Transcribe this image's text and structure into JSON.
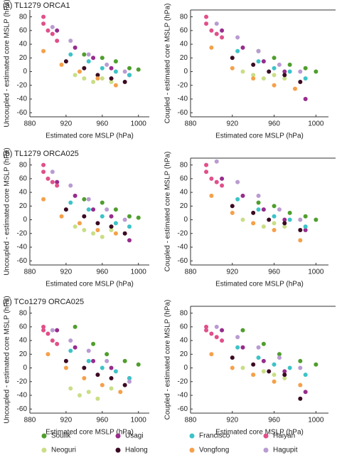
{
  "legend": [
    {
      "name": "Soulik",
      "color": "#4f9e2d"
    },
    {
      "name": "Usagi",
      "color": "#972c8c"
    },
    {
      "name": "Francisco",
      "color": "#3cc3c8"
    },
    {
      "name": "Haiyan",
      "color": "#e0508a"
    },
    {
      "name": "Neoguri",
      "color": "#c9de86"
    },
    {
      "name": "Halong",
      "color": "#3b0a22"
    },
    {
      "name": "Vongfong",
      "color": "#f5a04a"
    },
    {
      "name": "Hagupit",
      "color": "#b99bd2"
    }
  ],
  "chart_data": [
    {
      "type": "scatter",
      "title": "(a)  TL1279 ORCA1",
      "xlabel": "Estimated core MSLP (hPa)",
      "ylabel": "Uncoupled - estimated core MSLP (hPa)",
      "xlim": [
        880,
        1012
      ],
      "ylim": [
        -66,
        90
      ],
      "xticks": [
        880,
        920,
        960,
        1000
      ],
      "yticks": [
        -60,
        -40,
        -20,
        0,
        20,
        40,
        60,
        80
      ],
      "series": [
        {
          "x": [
            940,
            960,
            975,
            990,
            1000
          ],
          "values": [
            25,
            20,
            15,
            5,
            3
          ]
        },
        {
          "x": [
            910,
            930,
            950,
            970,
            990
          ],
          "values": [
            60,
            35,
            20,
            5,
            -5
          ]
        },
        {
          "x": [
            925,
            945,
            960,
            975,
            990
          ],
          "values": [
            25,
            15,
            5,
            0,
            -5
          ]
        },
        {
          "x": [
            895,
            895,
            900,
            905,
            910
          ],
          "values": [
            80,
            70,
            60,
            55,
            45
          ]
        },
        {
          "x": [
            930,
            940,
            950,
            960,
            970
          ],
          "values": [
            -5,
            -10,
            -15,
            -10,
            -15
          ]
        },
        {
          "x": [
            920,
            940,
            955,
            970,
            985
          ],
          "values": [
            15,
            5,
            -5,
            -10,
            -15
          ]
        },
        {
          "x": [
            895,
            915,
            935,
            955,
            975
          ],
          "values": [
            30,
            10,
            0,
            -10,
            -20
          ]
        },
        {
          "x": [
            905,
            925,
            945,
            965,
            985
          ],
          "values": [
            65,
            45,
            25,
            10,
            0
          ]
        }
      ]
    },
    {
      "type": "scatter",
      "xlabel": "Estimated core MSLP (hPa)",
      "ylabel": "Coupled - estimated core MSLP (hPa)",
      "xlim": [
        880,
        1012
      ],
      "ylim": [
        -66,
        90
      ],
      "xticks": [
        880,
        920,
        960,
        1000
      ],
      "yticks": [
        -60,
        -40,
        -20,
        0,
        20,
        40,
        60,
        80
      ],
      "series": [
        {
          "x": [
            945,
            960,
            975,
            990,
            1000
          ],
          "values": [
            30,
            20,
            10,
            5,
            0
          ]
        },
        {
          "x": [
            910,
            930,
            950,
            970,
            990
          ],
          "values": [
            60,
            35,
            15,
            0,
            -40
          ]
        },
        {
          "x": [
            925,
            945,
            960,
            975,
            990
          ],
          "values": [
            30,
            15,
            5,
            0,
            -10
          ]
        },
        {
          "x": [
            895,
            895,
            900,
            905,
            910
          ],
          "values": [
            80,
            70,
            60,
            55,
            50
          ]
        },
        {
          "x": [
            930,
            940,
            950,
            960,
            970
          ],
          "values": [
            0,
            -5,
            -10,
            -5,
            -10
          ]
        },
        {
          "x": [
            920,
            940,
            955,
            970,
            985
          ],
          "values": [
            20,
            10,
            0,
            -5,
            -15
          ]
        },
        {
          "x": [
            900,
            920,
            940,
            960,
            980
          ],
          "values": [
            35,
            5,
            -10,
            -20,
            -25
          ]
        },
        {
          "x": [
            905,
            925,
            945,
            965,
            985
          ],
          "values": [
            70,
            50,
            30,
            10,
            0
          ]
        }
      ]
    },
    {
      "type": "scatter",
      "title": "(b)  TL1279 ORCA025",
      "xlabel": "Estimated core MSLP (hPa)",
      "ylabel": "Uncoupled - estimated core MSLP (hPa)",
      "xlim": [
        880,
        1012
      ],
      "ylim": [
        -66,
        90
      ],
      "xticks": [
        880,
        920,
        960,
        1000
      ],
      "yticks": [
        -60,
        -40,
        -20,
        0,
        20,
        40,
        60,
        80
      ],
      "series": [
        {
          "x": [
            940,
            960,
            975,
            990,
            1000
          ],
          "values": [
            30,
            25,
            15,
            5,
            3
          ]
        },
        {
          "x": [
            910,
            930,
            950,
            970,
            990
          ],
          "values": [
            55,
            35,
            15,
            5,
            -30
          ]
        },
        {
          "x": [
            925,
            945,
            960,
            975,
            990
          ],
          "values": [
            25,
            15,
            5,
            -5,
            -10
          ]
        },
        {
          "x": [
            895,
            895,
            900,
            905,
            910
          ],
          "values": [
            80,
            70,
            60,
            55,
            50
          ]
        },
        {
          "x": [
            930,
            940,
            950,
            960,
            970
          ],
          "values": [
            -10,
            -15,
            -20,
            -25,
            -15
          ]
        },
        {
          "x": [
            920,
            940,
            955,
            970,
            985
          ],
          "values": [
            15,
            5,
            -5,
            -10,
            -20
          ]
        },
        {
          "x": [
            895,
            915,
            935,
            955,
            975
          ],
          "values": [
            30,
            5,
            -5,
            -15,
            -20
          ]
        },
        {
          "x": [
            905,
            925,
            945,
            965,
            985
          ],
          "values": [
            70,
            50,
            30,
            15,
            0
          ]
        }
      ]
    },
    {
      "type": "scatter",
      "xlabel": "Estimated core MSLP (hPa)",
      "ylabel": "Coupled - estimated core MSLP (hPa)",
      "xlim": [
        880,
        1012
      ],
      "ylim": [
        -66,
        90
      ],
      "xticks": [
        880,
        920,
        960,
        1000
      ],
      "yticks": [
        -60,
        -40,
        -20,
        0,
        20,
        40,
        60,
        80
      ],
      "series": [
        {
          "x": [
            945,
            960,
            975,
            990,
            1000
          ],
          "values": [
            25,
            20,
            10,
            5,
            0
          ]
        },
        {
          "x": [
            910,
            930,
            950,
            970,
            990
          ],
          "values": [
            60,
            35,
            15,
            0,
            -15
          ]
        },
        {
          "x": [
            925,
            945,
            960,
            975,
            990
          ],
          "values": [
            30,
            15,
            5,
            0,
            -10
          ]
        },
        {
          "x": [
            895,
            895,
            900,
            905,
            910
          ],
          "values": [
            80,
            70,
            60,
            55,
            50
          ]
        },
        {
          "x": [
            930,
            940,
            950,
            960,
            970
          ],
          "values": [
            0,
            -5,
            -10,
            -5,
            -10
          ]
        },
        {
          "x": [
            920,
            940,
            955,
            970,
            985
          ],
          "values": [
            20,
            10,
            0,
            -5,
            -15
          ]
        },
        {
          "x": [
            900,
            920,
            940,
            960,
            985
          ],
          "values": [
            35,
            10,
            -5,
            -15,
            -30
          ]
        },
        {
          "x": [
            905,
            925,
            945,
            965,
            985
          ],
          "values": [
            85,
            55,
            35,
            15,
            0
          ]
        }
      ]
    },
    {
      "type": "scatter",
      "title": "(c)  TCo1279 ORCA025",
      "xlabel": "Estimated core MSLP (hPa)",
      "ylabel": "Uncoupled - estimated core MSLP (hPa)",
      "xlim": [
        880,
        1012
      ],
      "ylim": [
        -66,
        90
      ],
      "xticks": [
        880,
        920,
        960,
        1000
      ],
      "yticks": [
        -60,
        -40,
        -20,
        0,
        20,
        40,
        60,
        80
      ],
      "series": [
        {
          "x": [
            930,
            950,
            965,
            985,
            1000
          ],
          "values": [
            60,
            35,
            20,
            10,
            5
          ]
        },
        {
          "x": [
            910,
            930,
            950,
            970,
            990
          ],
          "values": [
            55,
            30,
            10,
            0,
            -15
          ]
        },
        {
          "x": [
            925,
            945,
            960,
            975,
            990
          ],
          "values": [
            25,
            10,
            0,
            -5,
            -15
          ]
        },
        {
          "x": [
            895,
            895,
            900,
            905,
            910
          ],
          "values": [
            60,
            55,
            50,
            40,
            35
          ]
        },
        {
          "x": [
            925,
            935,
            945,
            955,
            970
          ],
          "values": [
            -30,
            -40,
            -35,
            -45,
            -30
          ]
        },
        {
          "x": [
            920,
            940,
            955,
            970,
            985
          ],
          "values": [
            10,
            0,
            -10,
            -15,
            -25
          ]
        },
        {
          "x": [
            900,
            920,
            940,
            960,
            980
          ],
          "values": [
            20,
            0,
            -15,
            -25,
            -35
          ]
        },
        {
          "x": [
            905,
            925,
            945,
            965,
            990
          ],
          "values": [
            55,
            40,
            25,
            10,
            -20
          ]
        }
      ]
    },
    {
      "type": "scatter",
      "xlabel": "Estimated core MSLP (hPa)",
      "ylabel": "Coupled - estimated core MSLP (hPa)",
      "xlim": [
        880,
        1012
      ],
      "ylim": [
        -66,
        90
      ],
      "xticks": [
        880,
        920,
        960,
        1000
      ],
      "yticks": [
        -60,
        -40,
        -20,
        0,
        20,
        40,
        60,
        80
      ],
      "series": [
        {
          "x": [
            930,
            950,
            965,
            985,
            1000
          ],
          "values": [
            55,
            35,
            20,
            10,
            5
          ]
        },
        {
          "x": [
            910,
            930,
            950,
            970,
            990
          ],
          "values": [
            55,
            30,
            10,
            -5,
            -35
          ]
        },
        {
          "x": [
            925,
            945,
            960,
            975,
            990
          ],
          "values": [
            30,
            15,
            5,
            0,
            -10
          ]
        },
        {
          "x": [
            895,
            895,
            900,
            905,
            910
          ],
          "values": [
            60,
            55,
            50,
            45,
            40
          ]
        },
        {
          "x": [
            930,
            940,
            950,
            960,
            970
          ],
          "values": [
            0,
            -10,
            -5,
            -10,
            -15
          ]
        },
        {
          "x": [
            920,
            940,
            955,
            970,
            985
          ],
          "values": [
            15,
            5,
            -5,
            -10,
            -45
          ]
        },
        {
          "x": [
            900,
            920,
            940,
            960,
            985
          ],
          "values": [
            20,
            0,
            -10,
            -20,
            -25
          ]
        },
        {
          "x": [
            905,
            925,
            945,
            965,
            985
          ],
          "values": [
            60,
            45,
            30,
            15,
            0
          ]
        }
      ]
    }
  ]
}
